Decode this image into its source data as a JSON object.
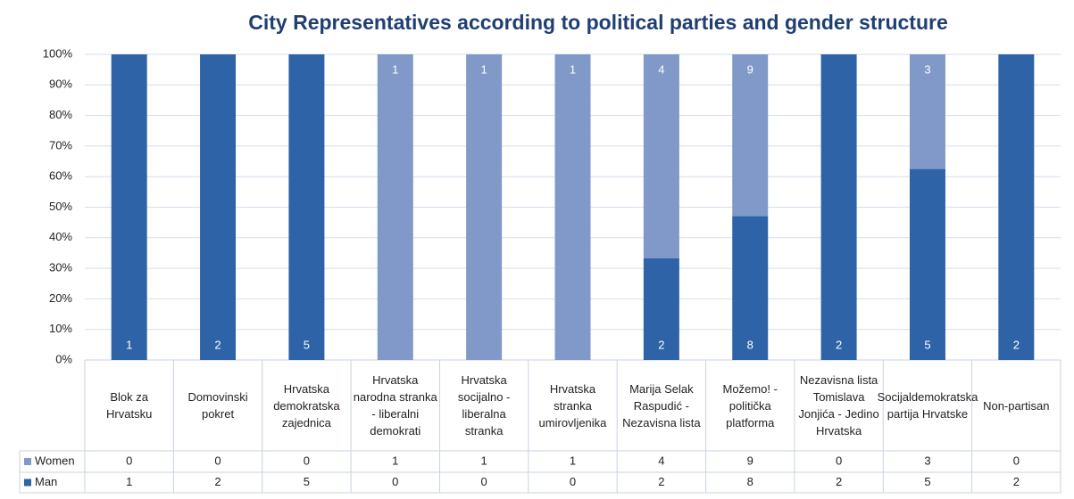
{
  "chart_data": {
    "type": "bar",
    "stacked": "percent",
    "title": "City Representatives according to political parties and gender structure",
    "categories": [
      "Blok za Hrvatsku",
      "Domovinski pokret",
      "Hrvatska demokratska zajednica",
      "Hrvatska narodna stranka - liberalni demokrati",
      "Hrvatska socijalno - liberalna stranka",
      "Hrvatska stranka umirovljenika",
      "Marija Selak Raspudić - Nezavisna lista",
      "Možemo! - politička platforma",
      "Nezavisna lista Tomislava Jonjića - Jedino Hrvatska",
      "Socijaldemokratska partija Hrvatske",
      "Non-partisan"
    ],
    "series": [
      {
        "name": "Man",
        "color": "#2f63a7",
        "values": [
          1,
          2,
          5,
          0,
          0,
          0,
          2,
          8,
          2,
          5,
          2
        ]
      },
      {
        "name": "Women",
        "color": "#8099c8",
        "values": [
          0,
          0,
          0,
          1,
          1,
          1,
          4,
          9,
          0,
          3,
          0
        ]
      }
    ],
    "ylim": [
      0,
      100
    ],
    "yticks": [
      {
        "value": 0,
        "label": "0%"
      },
      {
        "value": 10,
        "label": "10%"
      },
      {
        "value": 20,
        "label": "20%"
      },
      {
        "value": 30,
        "label": "30%"
      },
      {
        "value": 40,
        "label": "40%"
      },
      {
        "value": 50,
        "label": "50%"
      },
      {
        "value": 60,
        "label": "60%"
      },
      {
        "value": 70,
        "label": "70%"
      },
      {
        "value": 80,
        "label": "80%"
      },
      {
        "value": 90,
        "label": "90%"
      },
      {
        "value": 100,
        "label": "100%"
      }
    ],
    "grid": true
  }
}
